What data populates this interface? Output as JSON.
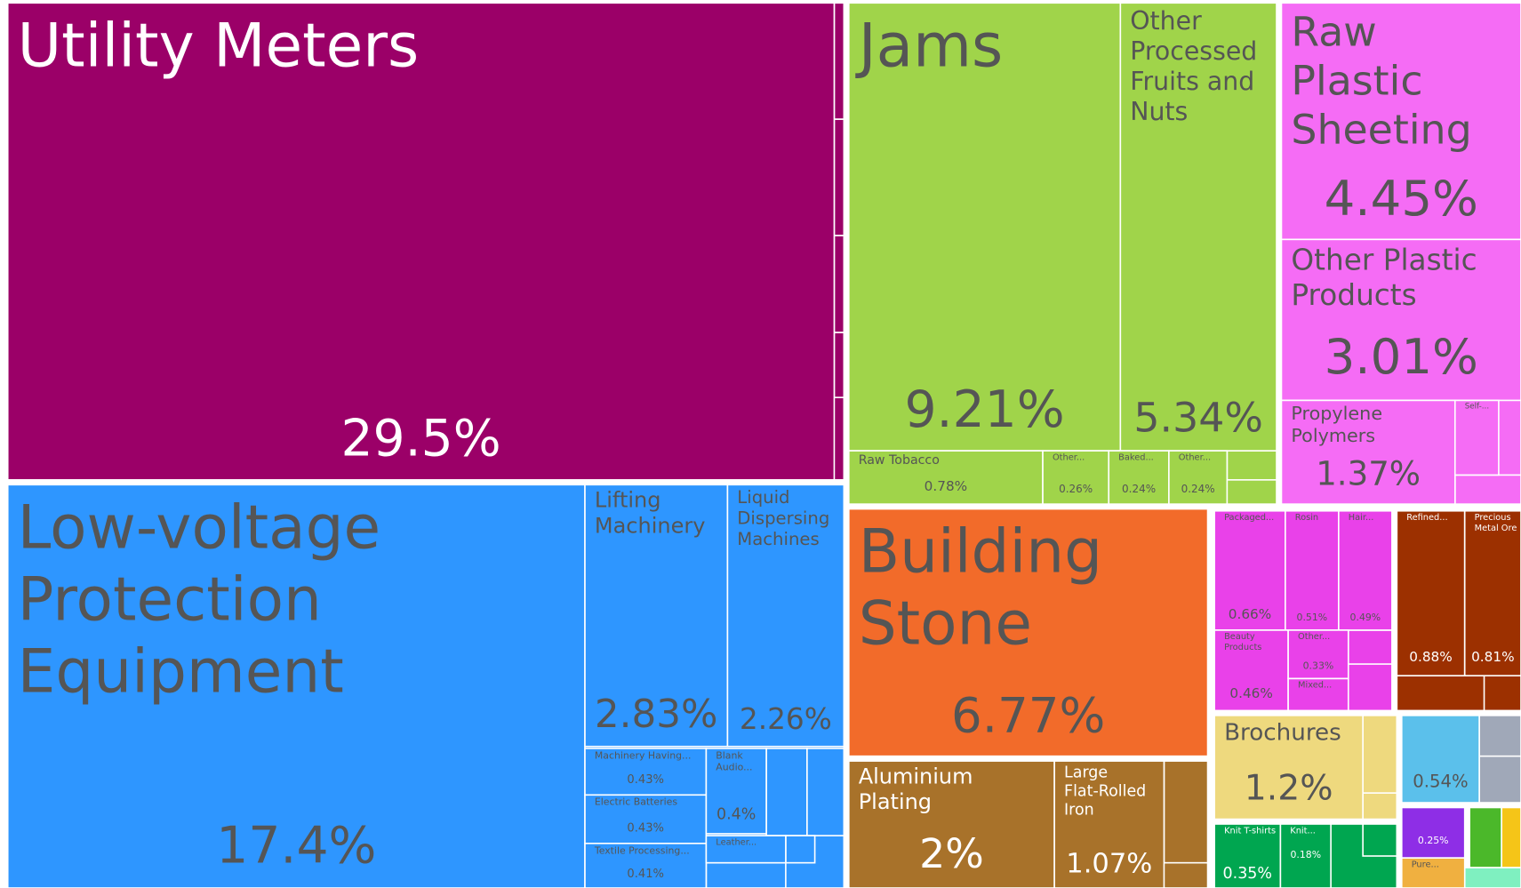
{
  "chart_data": {
    "type": "treemap",
    "labels": [
      "Utility Meters",
      "Low-voltage Protection Equipment",
      "Lifting Machinery",
      "Liquid Dispersing Machines",
      "Machinery Having...",
      "Electric Batteries",
      "Textile Processing...",
      "Blank Audio...",
      "Leather...",
      "Jams",
      "Other Processed Fruits and Nuts",
      "Raw Tobacco",
      "Other...",
      "Baked...",
      "Other...",
      "Raw Plastic Sheeting",
      "Other Plastic Products",
      "Propylene Polymers",
      "Self-...",
      "Building Stone",
      "Aluminium Plating",
      "Large Flat-Rolled Iron",
      "Packaged...",
      "Rosin",
      "Hair...",
      "Beauty Products",
      "Other...",
      "Mixed...",
      "Refined...",
      "Precious Metal Ore",
      "Brochures",
      null,
      "Knit T-shirts",
      "Knit...",
      null,
      "Pure..."
    ],
    "values": [
      29.5,
      17.4,
      2.83,
      2.26,
      0.43,
      0.43,
      0.41,
      0.4,
      null,
      9.21,
      5.34,
      0.78,
      0.26,
      0.24,
      0.24,
      4.45,
      3.01,
      1.37,
      null,
      6.77,
      2,
      1.07,
      0.66,
      0.51,
      0.49,
      0.46,
      0.33,
      null,
      0.88,
      0.81,
      1.2,
      0.54,
      0.35,
      0.18,
      0.25,
      null
    ],
    "value_labels": [
      "29.5%",
      "17.4%",
      "2.83%",
      "2.26%",
      "0.43%",
      "0.43%",
      "0.41%",
      "0.4%",
      null,
      "9.21%",
      "5.34%",
      "0.78%",
      "0.26%",
      "0.24%",
      "0.24%",
      "4.45%",
      "3.01%",
      "1.37%",
      null,
      "6.77%",
      "2%",
      "1.07%",
      "0.66%",
      "0.51%",
      "0.49%",
      "0.46%",
      "0.33%",
      null,
      "0.88%",
      "0.81%",
      "1.2%",
      "0.54%",
      "0.35%",
      "0.18%",
      "0.25%",
      null
    ],
    "colors": [
      "#9b0068",
      "#2e96ff",
      "#2e96ff",
      "#2e96ff",
      "#2e96ff",
      "#2e96ff",
      "#2e96ff",
      "#2e96ff",
      "#2e96ff",
      "#a0d44a",
      "#a0d44a",
      "#a0d44a",
      "#a0d44a",
      "#a0d44a",
      "#a0d44a",
      "#f56cf5",
      "#f56cf5",
      "#f56cf5",
      "#f56cf5",
      "#f26b2a",
      "#a8722a",
      "#a8722a",
      "#e941e9",
      "#e941e9",
      "#e941e9",
      "#e941e9",
      "#e941e9",
      "#e941e9",
      "#9c3000",
      "#9c3000",
      "#eed97e",
      "#5bc0eb",
      "#00a650",
      "#00a650",
      "#8e2ee6",
      "#f0b040"
    ]
  }
}
